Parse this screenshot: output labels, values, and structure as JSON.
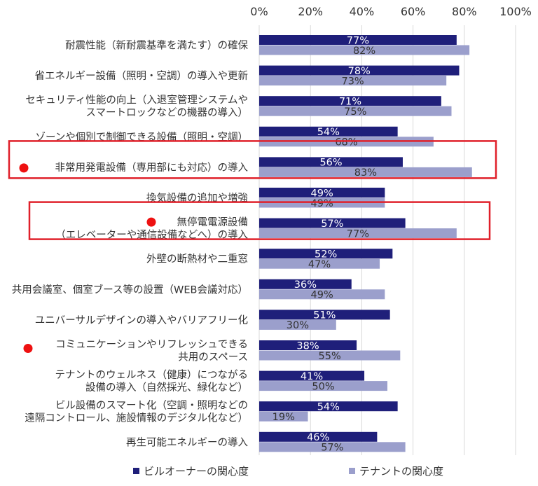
{
  "chart_data": {
    "type": "bar",
    "orientation": "horizontal",
    "x_ticks": [
      "0%",
      "20%",
      "40%",
      "60%",
      "80%",
      "100%"
    ],
    "xlim": [
      0,
      100
    ],
    "grid": true,
    "legend_position": "bottom",
    "colors": {
      "owner": "#1f1f7a",
      "tenant": "#9b9fcc",
      "highlight": "#e0202a",
      "marker": "#ee1111"
    },
    "categories": [
      [
        "耐震性能（新耐震基準を満たす）の確保"
      ],
      [
        "省エネルギー設備（照明・空調）の導入や更新"
      ],
      [
        "セキュリティ性能の向上（入退室管理システムや",
        "スマートロックなどの機器の導入）"
      ],
      [
        "ゾーンや個別で制御できる設備（照明・空調）"
      ],
      [
        "非常用発電設備（専用部にも対応）の導入"
      ],
      [
        "換気設備の追加や増強"
      ],
      [
        "無停電電源設備",
        "（エレベーターや通信設備などへ）の導入"
      ],
      [
        "外壁の断熱材や二重窓"
      ],
      [
        "共用会議室、個室ブース等の設置（WEB会議対応）"
      ],
      [
        "ユニバーサルデザインの導入やバリアフリー化"
      ],
      [
        "コミュニケーションやリフレッシュできる",
        "共用のスペース"
      ],
      [
        "テナントのウェルネス（健康）につながる",
        "設備の導入（自然採光、緑化など）"
      ],
      [
        "ビル設備のスマート化（空調・照明などの",
        "遠隔コントロール、施設情報のデジタル化など）"
      ],
      [
        "再生可能エネルギーの導入"
      ]
    ],
    "series": [
      {
        "name": "ビルオーナーの関心度",
        "values": [
          77,
          78,
          71,
          54,
          56,
          49,
          57,
          52,
          36,
          51,
          38,
          41,
          54,
          46
        ]
      },
      {
        "name": "テナントの関心度",
        "values": [
          82,
          73,
          75,
          68,
          83,
          49,
          77,
          47,
          49,
          30,
          55,
          50,
          19,
          57
        ]
      }
    ],
    "highlighted_categories": [
      4,
      6
    ],
    "marked_categories": [
      4,
      6,
      10
    ]
  }
}
